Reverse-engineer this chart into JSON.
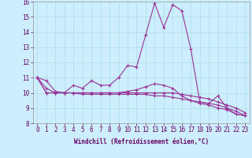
{
  "xlabel": "Windchill (Refroidissement éolien,°C)",
  "background_color": "#cceeff",
  "line_color": "#993399",
  "grid_color": "#aadddd",
  "x_hours": [
    0,
    1,
    2,
    3,
    4,
    5,
    6,
    7,
    8,
    9,
    10,
    11,
    12,
    13,
    14,
    15,
    16,
    17,
    18,
    19,
    20,
    21,
    22,
    23
  ],
  "series": [
    [
      11.0,
      10.8,
      10.1,
      10.0,
      10.5,
      10.3,
      10.8,
      10.5,
      10.5,
      11.0,
      11.8,
      11.7,
      13.8,
      15.9,
      14.3,
      15.8,
      15.4,
      12.9,
      9.4,
      9.3,
      9.8,
      9.0,
      8.6,
      8.5
    ],
    [
      11.0,
      10.3,
      10.0,
      10.0,
      10.0,
      10.0,
      10.0,
      10.0,
      10.0,
      10.0,
      10.1,
      10.2,
      10.4,
      10.6,
      10.5,
      10.3,
      9.8,
      9.5,
      9.3,
      9.2,
      9.0,
      8.9,
      8.6,
      8.5
    ],
    [
      11.0,
      10.0,
      10.0,
      10.0,
      10.0,
      10.0,
      10.0,
      10.0,
      10.0,
      10.0,
      10.0,
      10.0,
      10.0,
      10.0,
      10.0,
      10.0,
      9.9,
      9.8,
      9.7,
      9.6,
      9.4,
      9.2,
      9.0,
      8.7
    ],
    [
      11.0,
      10.0,
      10.0,
      10.0,
      10.0,
      9.9,
      9.9,
      9.9,
      9.9,
      9.9,
      9.9,
      9.9,
      9.9,
      9.8,
      9.8,
      9.7,
      9.6,
      9.5,
      9.4,
      9.3,
      9.2,
      9.0,
      8.8,
      8.5
    ]
  ],
  "ylim": [
    8,
    16
  ],
  "yticks": [
    8,
    9,
    10,
    11,
    12,
    13,
    14,
    15,
    16
  ],
  "xticks": [
    0,
    1,
    2,
    3,
    4,
    5,
    6,
    7,
    8,
    9,
    10,
    11,
    12,
    13,
    14,
    15,
    16,
    17,
    18,
    19,
    20,
    21,
    22,
    23
  ],
  "tick_fontsize": 5.5,
  "xlabel_fontsize": 5.5
}
